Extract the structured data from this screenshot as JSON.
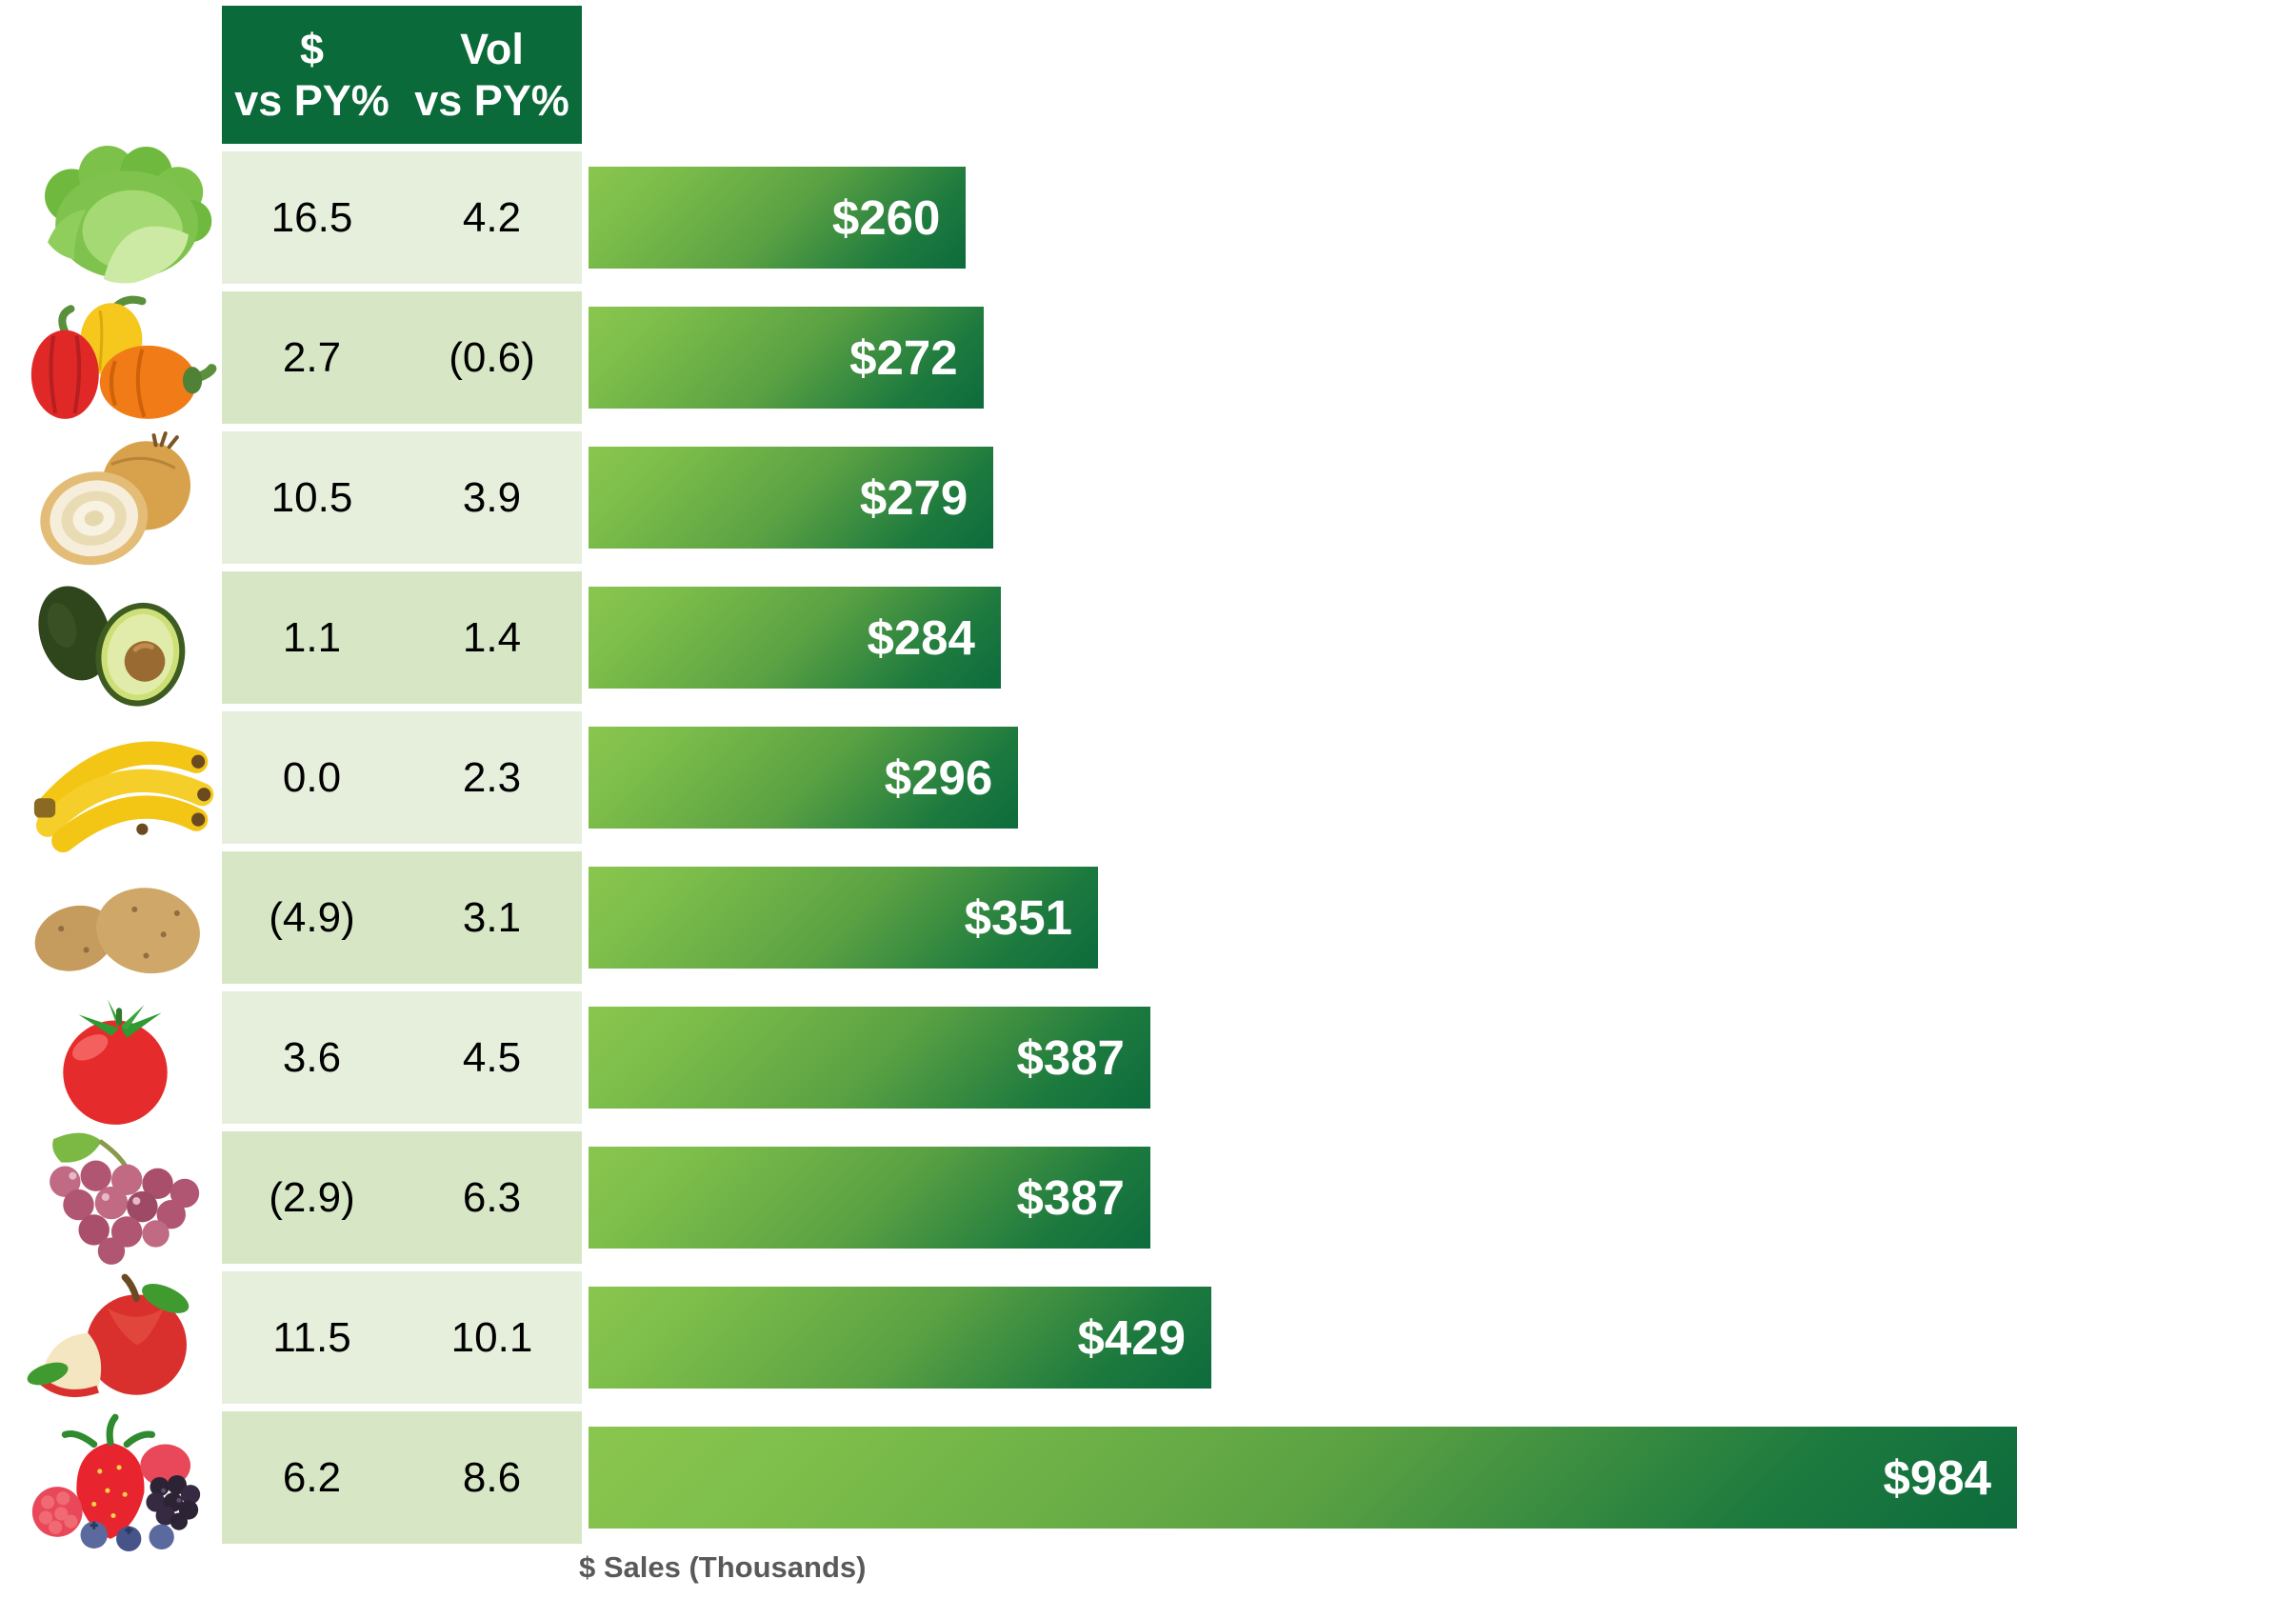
{
  "chart_data": {
    "type": "bar",
    "orientation": "horizontal",
    "title": "",
    "xlabel": "$ Sales (Thousands)",
    "xlim": [
      0,
      984
    ],
    "max_value": 984,
    "grid": false,
    "legend": false,
    "categories": [
      "lettuce",
      "bell-peppers",
      "onions",
      "avocados",
      "bananas",
      "potatoes",
      "tomatoes",
      "grapes",
      "apples",
      "berries"
    ],
    "series": [
      {
        "name": "$ Sales (Thousands)",
        "values": [
          260,
          272,
          279,
          284,
          296,
          351,
          387,
          387,
          429,
          984
        ]
      },
      {
        "name": "$ vs PY%",
        "values": [
          16.5,
          2.7,
          10.5,
          1.1,
          0.0,
          -4.9,
          3.6,
          -2.9,
          11.5,
          6.2
        ]
      },
      {
        "name": "Vol vs PY%",
        "values": [
          4.2,
          -0.6,
          3.9,
          1.4,
          2.3,
          3.1,
          4.5,
          6.3,
          10.1,
          8.6
        ]
      }
    ],
    "bar_labels": [
      "$260",
      "$272",
      "$279",
      "$284",
      "$296",
      "$351",
      "$387",
      "$387",
      "$429",
      "$984"
    ]
  },
  "table": {
    "header": {
      "col1_line1": "$",
      "col1_line2": "vs PY%",
      "col2_line1": "Vol",
      "col2_line2": "vs PY%"
    }
  },
  "rows": [
    {
      "icon": "lettuce",
      "dollar_vs_py": "16.5",
      "vol_vs_py": "4.2",
      "sales": 260,
      "sales_label": "$260"
    },
    {
      "icon": "bell-peppers",
      "dollar_vs_py": "2.7",
      "vol_vs_py": "(0.6)",
      "sales": 272,
      "sales_label": "$272"
    },
    {
      "icon": "onions",
      "dollar_vs_py": "10.5",
      "vol_vs_py": "3.9",
      "sales": 279,
      "sales_label": "$279"
    },
    {
      "icon": "avocados",
      "dollar_vs_py": "1.1",
      "vol_vs_py": "1.4",
      "sales": 284,
      "sales_label": "$284"
    },
    {
      "icon": "bananas",
      "dollar_vs_py": "0.0",
      "vol_vs_py": "2.3",
      "sales": 296,
      "sales_label": "$296"
    },
    {
      "icon": "potatoes",
      "dollar_vs_py": "(4.9)",
      "vol_vs_py": "3.1",
      "sales": 351,
      "sales_label": "$351"
    },
    {
      "icon": "tomatoes",
      "dollar_vs_py": "3.6",
      "vol_vs_py": "4.5",
      "sales": 387,
      "sales_label": "$387"
    },
    {
      "icon": "grapes",
      "dollar_vs_py": "(2.9)",
      "vol_vs_py": "6.3",
      "sales": 387,
      "sales_label": "$387"
    },
    {
      "icon": "apples",
      "dollar_vs_py": "11.5",
      "vol_vs_py": "10.1",
      "sales": 429,
      "sales_label": "$429"
    },
    {
      "icon": "berries",
      "dollar_vs_py": "6.2",
      "vol_vs_py": "8.6",
      "sales": 984,
      "sales_label": "$984"
    }
  ],
  "axis": {
    "label": "$ Sales (Thousands)"
  },
  "colors": {
    "header_bg": "#0a6a39",
    "header_text": "#ffffff",
    "row_light_bg": "#e6efdc",
    "row_dark_bg": "#d7e7c5",
    "value_text": "#000000",
    "bar_gradient_start": "#8ac64f",
    "bar_gradient_end": "#0d6b3d",
    "bar_label_text": "#ffffff",
    "axis_label_text": "#595959"
  }
}
